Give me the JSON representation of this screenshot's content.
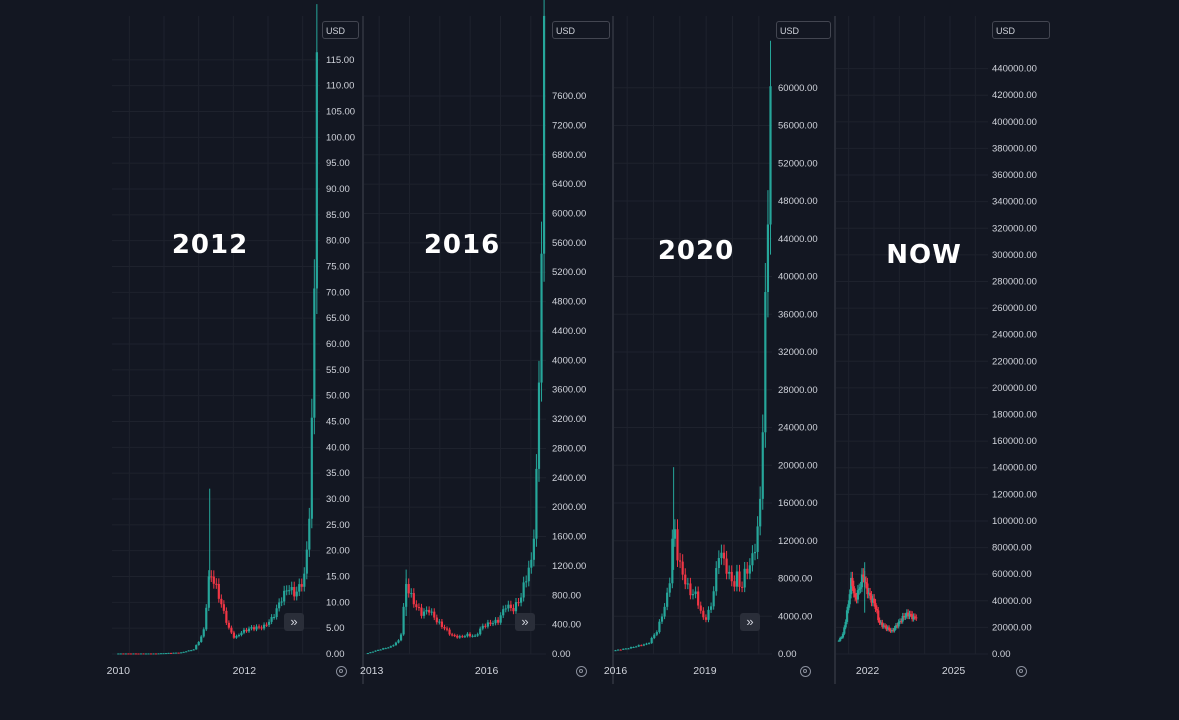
{
  "chart_data": [
    {
      "type": "candlestick",
      "overlay_label": "2012",
      "currency": "USD",
      "x_ticks": [
        {
          "label": "2010",
          "t": 2010.0
        },
        {
          "label": "2012",
          "t": 2012.0
        }
      ],
      "x_range": [
        2009.9,
        2013.2
      ],
      "ylim": [
        0,
        120
      ],
      "y_ticks": [
        "0.00",
        "5.00",
        "10.00",
        "15.00",
        "20.00",
        "25.00",
        "30.00",
        "35.00",
        "40.00",
        "45.00",
        "50.00",
        "55.00",
        "60.00",
        "65.00",
        "70.00",
        "75.00",
        "80.00",
        "85.00",
        "90.00",
        "95.00",
        "100.00",
        "105.00",
        "110.00",
        "115.00"
      ],
      "series": [
        {
          "t": 2010.0,
          "v": 0.1
        },
        {
          "t": 2010.3,
          "v": 0.1
        },
        {
          "t": 2010.6,
          "v": 0.1
        },
        {
          "t": 2010.8,
          "v": 0.2
        },
        {
          "t": 2011.0,
          "v": 0.3
        },
        {
          "t": 2011.2,
          "v": 0.9
        },
        {
          "t": 2011.35,
          "v": 4.0
        },
        {
          "t": 2011.45,
          "v": 16.0
        },
        {
          "t": 2011.55,
          "v": 13.0
        },
        {
          "t": 2011.65,
          "v": 9.0
        },
        {
          "t": 2011.75,
          "v": 5.0
        },
        {
          "t": 2011.85,
          "v": 3.0
        },
        {
          "t": 2011.95,
          "v": 4.2
        },
        {
          "t": 2012.1,
          "v": 5.0
        },
        {
          "t": 2012.3,
          "v": 5.2
        },
        {
          "t": 2012.45,
          "v": 7.0
        },
        {
          "t": 2012.6,
          "v": 11.0
        },
        {
          "t": 2012.7,
          "v": 13.0
        },
        {
          "t": 2012.8,
          "v": 11.5
        },
        {
          "t": 2012.9,
          "v": 13.5
        },
        {
          "t": 2012.95,
          "v": 15.0
        },
        {
          "t": 2013.0,
          "v": 21.0
        },
        {
          "t": 2013.05,
          "v": 32.0
        },
        {
          "t": 2013.1,
          "v": 60.0
        },
        {
          "t": 2013.15,
          "v": 120.0
        }
      ],
      "spike": {
        "t": 2011.45,
        "v": 32.0
      }
    },
    {
      "type": "candlestick",
      "overlay_label": "2016",
      "currency": "USD",
      "x_ticks": [
        {
          "label": "2013",
          "t": 2013.0
        },
        {
          "label": "2016",
          "t": 2016.0
        }
      ],
      "x_range": [
        2012.8,
        2017.55
      ],
      "ylim": [
        0,
        8200
      ],
      "y_ticks": [
        "0.00",
        "400.00",
        "800.00",
        "1200.00",
        "1600.00",
        "2000.00",
        "2400.00",
        "2800.00",
        "3200.00",
        "3600.00",
        "4000.00",
        "4400.00",
        "4800.00",
        "5200.00",
        "5600.00",
        "6000.00",
        "6400.00",
        "6800.00",
        "7200.00",
        "7600.00"
      ],
      "series": [
        {
          "t": 2012.9,
          "v": 13
        },
        {
          "t": 2013.2,
          "v": 60
        },
        {
          "t": 2013.5,
          "v": 100
        },
        {
          "t": 2013.75,
          "v": 200
        },
        {
          "t": 2013.9,
          "v": 950
        },
        {
          "t": 2014.1,
          "v": 700
        },
        {
          "t": 2014.3,
          "v": 550
        },
        {
          "t": 2014.5,
          "v": 600
        },
        {
          "t": 2014.7,
          "v": 450
        },
        {
          "t": 2014.9,
          "v": 350
        },
        {
          "t": 2015.1,
          "v": 250
        },
        {
          "t": 2015.3,
          "v": 230
        },
        {
          "t": 2015.5,
          "v": 260
        },
        {
          "t": 2015.7,
          "v": 240
        },
        {
          "t": 2015.9,
          "v": 380
        },
        {
          "t": 2016.1,
          "v": 420
        },
        {
          "t": 2016.3,
          "v": 450
        },
        {
          "t": 2016.5,
          "v": 660
        },
        {
          "t": 2016.7,
          "v": 610
        },
        {
          "t": 2016.9,
          "v": 780
        },
        {
          "t": 2017.0,
          "v": 1000
        },
        {
          "t": 2017.1,
          "v": 1150
        },
        {
          "t": 2017.2,
          "v": 1300
        },
        {
          "t": 2017.3,
          "v": 2400
        },
        {
          "t": 2017.4,
          "v": 4400
        },
        {
          "t": 2017.5,
          "v": 8200
        }
      ],
      "spike": {
        "t": 2013.9,
        "v": 1150
      }
    },
    {
      "type": "candlestick",
      "overlay_label": "2020",
      "currency": "USD",
      "x_ticks": [
        {
          "label": "2016",
          "t": 2016.0
        },
        {
          "label": "2019",
          "t": 2019.0
        }
      ],
      "x_range": [
        2015.95,
        2021.25
      ],
      "ylim": [
        0,
        64000
      ],
      "y_ticks": [
        "0.00",
        "4000.00",
        "8000.00",
        "12000.00",
        "16000.00",
        "20000.00",
        "24000.00",
        "28000.00",
        "32000.00",
        "36000.00",
        "40000.00",
        "44000.00",
        "48000.00",
        "52000.00",
        "56000.00",
        "60000.00"
      ],
      "series": [
        {
          "t": 2016.0,
          "v": 400
        },
        {
          "t": 2016.4,
          "v": 600
        },
        {
          "t": 2016.8,
          "v": 900
        },
        {
          "t": 2017.1,
          "v": 1100
        },
        {
          "t": 2017.4,
          "v": 2500
        },
        {
          "t": 2017.6,
          "v": 4500
        },
        {
          "t": 2017.8,
          "v": 7000
        },
        {
          "t": 2017.95,
          "v": 14000
        },
        {
          "t": 2018.1,
          "v": 10000
        },
        {
          "t": 2018.3,
          "v": 8000
        },
        {
          "t": 2018.5,
          "v": 6500
        },
        {
          "t": 2018.7,
          "v": 6300
        },
        {
          "t": 2018.9,
          "v": 4000
        },
        {
          "t": 2019.0,
          "v": 3600
        },
        {
          "t": 2019.2,
          "v": 5000
        },
        {
          "t": 2019.4,
          "v": 9000
        },
        {
          "t": 2019.5,
          "v": 11500
        },
        {
          "t": 2019.6,
          "v": 10000
        },
        {
          "t": 2019.8,
          "v": 8500
        },
        {
          "t": 2019.95,
          "v": 7200
        },
        {
          "t": 2020.1,
          "v": 8500
        },
        {
          "t": 2020.2,
          "v": 6500
        },
        {
          "t": 2020.35,
          "v": 8800
        },
        {
          "t": 2020.5,
          "v": 9200
        },
        {
          "t": 2020.65,
          "v": 11000
        },
        {
          "t": 2020.8,
          "v": 13500
        },
        {
          "t": 2020.9,
          "v": 19000
        },
        {
          "t": 2021.0,
          "v": 33000
        },
        {
          "t": 2021.1,
          "v": 45000
        },
        {
          "t": 2021.2,
          "v": 61000
        }
      ],
      "spike": {
        "t": 2017.95,
        "v": 19800
      }
    },
    {
      "type": "candlestick",
      "overlay_label": "NOW",
      "currency": "USD",
      "x_ticks": [
        {
          "label": "2022",
          "t": 2022.0
        },
        {
          "label": "2025",
          "t": 2025.0
        }
      ],
      "x_range": [
        2020.9,
        2026.2
      ],
      "ylim": [
        0,
        460000
      ],
      "y_ticks": [
        "0.00",
        "20000.00",
        "40000.00",
        "60000.00",
        "80000.00",
        "100000.00",
        "120000.00",
        "140000.00",
        "160000.00",
        "180000.00",
        "200000.00",
        "220000.00",
        "240000.00",
        "260000.00",
        "280000.00",
        "300000.00",
        "320000.00",
        "340000.00",
        "360000.00",
        "380000.00",
        "400000.00",
        "420000.00",
        "440000.00"
      ],
      "series": [
        {
          "t": 2021.0,
          "v": 10000
        },
        {
          "t": 2021.15,
          "v": 15000
        },
        {
          "t": 2021.3,
          "v": 33000
        },
        {
          "t": 2021.45,
          "v": 58000
        },
        {
          "t": 2021.55,
          "v": 40000
        },
        {
          "t": 2021.7,
          "v": 48000
        },
        {
          "t": 2021.85,
          "v": 60000
        },
        {
          "t": 2021.95,
          "v": 50000
        },
        {
          "t": 2022.1,
          "v": 42000
        },
        {
          "t": 2022.25,
          "v": 38000
        },
        {
          "t": 2022.4,
          "v": 24000
        },
        {
          "t": 2022.55,
          "v": 21000
        },
        {
          "t": 2022.7,
          "v": 19000
        },
        {
          "t": 2022.85,
          "v": 17000
        },
        {
          "t": 2023.0,
          "v": 21000
        },
        {
          "t": 2023.15,
          "v": 25000
        },
        {
          "t": 2023.3,
          "v": 29000
        },
        {
          "t": 2023.45,
          "v": 30000
        },
        {
          "t": 2023.6,
          "v": 27000
        },
        {
          "t": 2023.7,
          "v": 28000
        }
      ],
      "spike": {
        "t": 2021.9,
        "v": 69000
      }
    }
  ],
  "colors": {
    "up": "#26a69a",
    "down": "#f23645",
    "background": "#131722",
    "grid": "#1e222d",
    "text": "#d1d4dc"
  },
  "icons": {
    "scroll_forward": "double-chevron-right-icon",
    "settings": "settings-gear-icon"
  }
}
